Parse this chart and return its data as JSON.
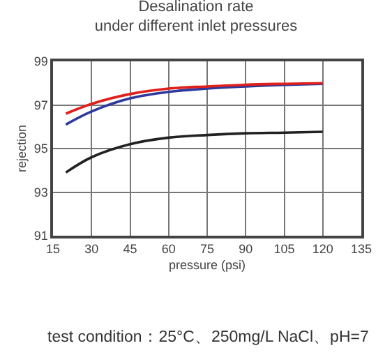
{
  "chart_data": {
    "type": "line",
    "title": "Desalination rate\nunder different inlet pressures",
    "xlabel": "pressure (psi)",
    "ylabel": "rejection",
    "x": [
      20,
      30,
      45,
      60,
      75,
      90,
      105,
      120
    ],
    "series": [
      {
        "color": "#2b3a9c",
        "values": [
          96.1,
          96.7,
          97.3,
          97.6,
          97.75,
          97.85,
          97.92,
          97.97
        ]
      },
      {
        "color": "#e0201c",
        "values": [
          96.6,
          97.05,
          97.5,
          97.75,
          97.85,
          97.93,
          97.97,
          98.0
        ]
      },
      {
        "color": "#222222",
        "values": [
          93.9,
          94.6,
          95.2,
          95.5,
          95.62,
          95.7,
          95.73,
          95.77
        ]
      }
    ],
    "xlim": [
      15,
      135
    ],
    "xticks": [
      15,
      30,
      45,
      60,
      75,
      90,
      105,
      120,
      135
    ],
    "ylim": [
      91,
      99
    ],
    "yticks": [
      91,
      93,
      95,
      97,
      99
    ],
    "grid": true,
    "marker": "none",
    "line_style": "solid",
    "annotations": [
      "test condition：25°C、250mg/L NaCl、pH=7"
    ]
  }
}
